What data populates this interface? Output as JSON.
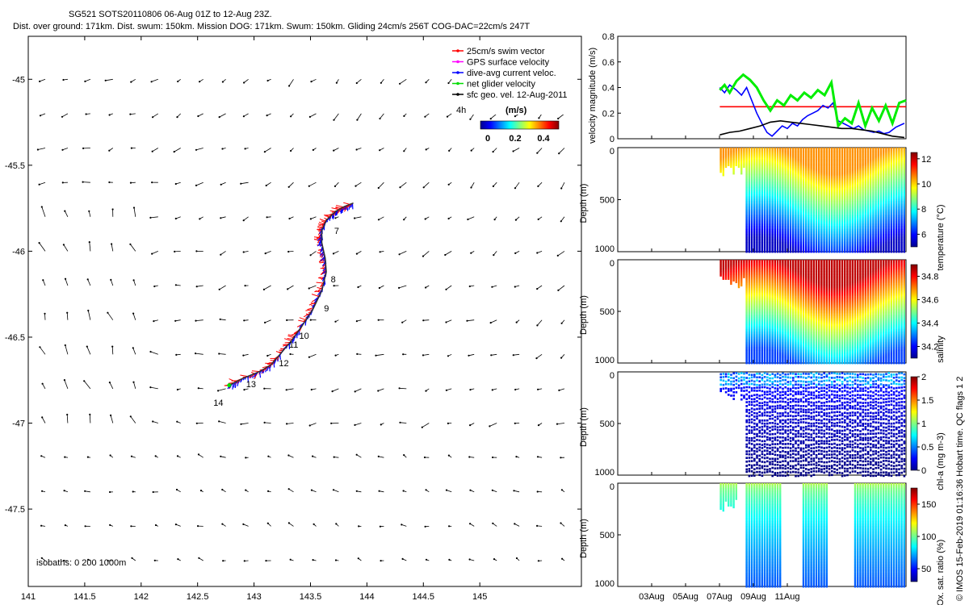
{
  "header": {
    "line1": "SG521 SOTS20110806 06-Aug 01Z to 12-Aug 23Z.",
    "line2": "Dist. over ground: 171km. Dist. swum: 150km. Mission DOG: 171km. Swum: 150km. Gliding 24cm/s 256T COG-DAC=22cm/s 247T"
  },
  "side_label": "© IMOS 15-Feb-2019 01:16:36 Hobart time. QC flags 1  2",
  "chart_data": [
    {
      "type": "scatter",
      "panel": "map",
      "xlim": [
        141,
        145.9
      ],
      "ylim": [
        -47.95,
        -44.75
      ],
      "xticks": [
        141,
        141.5,
        142,
        142.5,
        143,
        143.5,
        144,
        144.5,
        145
      ],
      "xtick_labels": [
        "141",
        "141.5",
        "142",
        "142.5",
        "143",
        "143.5",
        "144",
        "144.5",
        "145"
      ],
      "yticks": [
        -45,
        -45.5,
        -46,
        -46.5,
        -47,
        -47.5
      ],
      "ytick_labels": [
        "-45",
        "-45.5",
        "-46",
        "-46.5",
        "-47",
        "-47.5"
      ],
      "legend": {
        "placement": "top-right",
        "entries": [
          {
            "label": "25cm/s swim vector",
            "color": "#ff0000"
          },
          {
            "label": "GPS surface velocity",
            "color": "#ff00ff"
          },
          {
            "label": "dive-avg current veloc.",
            "color": "#0000ff"
          },
          {
            "label": "net glider velocity",
            "color": "#00dd00"
          },
          {
            "label": "sfc geo. vel. 12-Aug-2011",
            "color": "#000000"
          }
        ],
        "extra": "4h",
        "colorbar_title": "(m/s)",
        "colorbar_ticks": [
          "0",
          "0.2",
          "0.4"
        ]
      },
      "track": {
        "lon": [
          142.78,
          142.9,
          143.05,
          143.15,
          143.23,
          143.32,
          143.42,
          143.52,
          143.6,
          143.64,
          143.63,
          143.6,
          143.6,
          143.64,
          143.72,
          143.8,
          143.88
        ],
        "lat": [
          -46.78,
          -46.74,
          -46.7,
          -46.66,
          -46.6,
          -46.53,
          -46.44,
          -46.34,
          -46.23,
          -46.12,
          -46.04,
          -45.95,
          -45.88,
          -45.82,
          -45.77,
          -45.74,
          -45.72
        ]
      },
      "day_labels": [
        {
          "text": "7",
          "lon": 143.71,
          "lat": -45.9
        },
        {
          "text": "8",
          "lon": 143.68,
          "lat": -46.18
        },
        {
          "text": "9",
          "lon": 143.62,
          "lat": -46.35
        },
        {
          "text": "10",
          "lon": 143.4,
          "lat": -46.51
        },
        {
          "text": "11",
          "lon": 143.31,
          "lat": -46.56
        },
        {
          "text": "12",
          "lon": 143.22,
          "lat": -46.67
        },
        {
          "text": "13",
          "lon": 142.93,
          "lat": -46.79
        },
        {
          "text": "14",
          "lon": 142.64,
          "lat": -46.9
        }
      ],
      "isobaths_label": "isobaths: 0   200  1000m"
    },
    {
      "type": "line",
      "panel": "velocity",
      "ylabel": "velocity magnitude (m/s)",
      "ylim": [
        0,
        0.8
      ],
      "yticks": [
        "0",
        "0.2",
        "0.4",
        "0.6",
        "0.8"
      ],
      "xlim": [
        0,
        17
      ],
      "series": [
        {
          "color": "#ff0000",
          "x": [
            6.02,
            17
          ],
          "y": [
            0.25,
            0.25
          ]
        },
        {
          "color": "#0000ff",
          "x": [
            6.02,
            6.3,
            6.6,
            7.0,
            7.3,
            7.6,
            7.9,
            8.2,
            8.5,
            8.8,
            9.1,
            9.4,
            9.7,
            10.0,
            10.3,
            10.6,
            10.9,
            11.2,
            11.5,
            11.8,
            12.1,
            12.4,
            12.7,
            13.0,
            13.3,
            13.6,
            13.9,
            14.2,
            14.5,
            14.8,
            15.1,
            15.4,
            15.7,
            16.0,
            16.4,
            16.9
          ],
          "y": [
            0.4,
            0.36,
            0.42,
            0.38,
            0.34,
            0.4,
            0.3,
            0.2,
            0.12,
            0.05,
            0.02,
            0.06,
            0.1,
            0.08,
            0.12,
            0.1,
            0.15,
            0.18,
            0.2,
            0.22,
            0.26,
            0.24,
            0.28,
            0.14,
            0.12,
            0.1,
            0.08,
            0.1,
            0.07,
            0.06,
            0.05,
            0.06,
            0.04,
            0.05,
            0.09,
            0.12
          ]
        },
        {
          "color": "#00ee00",
          "x": [
            6.02,
            6.3,
            6.6,
            7.0,
            7.4,
            7.8,
            8.2,
            8.6,
            9.0,
            9.4,
            9.8,
            10.2,
            10.6,
            11.0,
            11.4,
            11.8,
            12.2,
            12.6,
            13.0,
            13.4,
            13.8,
            14.2,
            14.6,
            15.0,
            15.4,
            15.8,
            16.2,
            16.6,
            17.0
          ],
          "y": [
            0.38,
            0.42,
            0.36,
            0.45,
            0.5,
            0.46,
            0.4,
            0.3,
            0.22,
            0.3,
            0.26,
            0.34,
            0.3,
            0.36,
            0.32,
            0.38,
            0.34,
            0.44,
            0.1,
            0.16,
            0.12,
            0.28,
            0.1,
            0.24,
            0.14,
            0.26,
            0.12,
            0.28,
            0.3
          ]
        },
        {
          "color": "#000000",
          "x": [
            6.02,
            6.6,
            7.2,
            7.8,
            8.4,
            9.0,
            9.6,
            10.2,
            10.8,
            11.4,
            12.0,
            12.6,
            13.2,
            13.8,
            14.4,
            15.0,
            15.6,
            16.2,
            16.9
          ],
          "y": [
            0.03,
            0.05,
            0.06,
            0.08,
            0.1,
            0.13,
            0.14,
            0.13,
            0.12,
            0.11,
            0.1,
            0.09,
            0.08,
            0.08,
            0.07,
            0.06,
            0.04,
            0.02,
            0.01
          ]
        }
      ]
    },
    {
      "type": "heatmap",
      "panel": "temperature",
      "ylabel": "Depth (m)",
      "yticks": [
        "0",
        "500",
        "1000"
      ],
      "colorbar_label": "temperature (°C)",
      "colorbar_range": [
        5,
        12.5
      ],
      "colorbar_ticks": [
        "6",
        "8",
        "10",
        "12"
      ],
      "surface_value": 10.5,
      "deep_value": 5.5,
      "x_start": 6.02,
      "x_break": 7.52
    },
    {
      "type": "heatmap",
      "panel": "salinity",
      "ylabel": "Depth (m)",
      "yticks": [
        "0",
        "500",
        "1000"
      ],
      "colorbar_label": "salinity",
      "colorbar_range": [
        34.1,
        34.9
      ],
      "colorbar_ticks": [
        "34.2",
        "34.4",
        "34.6",
        "34.8"
      ],
      "surface_value": 34.85,
      "deep_value": 34.25,
      "x_start": 6.02,
      "x_break": 7.52
    },
    {
      "type": "heatmap",
      "panel": "chlorophyll",
      "ylabel": "Depth (m)",
      "yticks": [
        "0",
        "500",
        "1000"
      ],
      "colorbar_label": "chl-a (mg m-3)",
      "colorbar_range": [
        0,
        2
      ],
      "colorbar_ticks": [
        "0",
        "0.5",
        "1",
        "1.5",
        "2"
      ],
      "surface_value": 0.4,
      "deep_value": 0.0,
      "x_start": 6.02,
      "x_break": 7.52
    },
    {
      "type": "heatmap",
      "panel": "oxygen",
      "ylabel": "Depth (m)",
      "yticks": [
        "0",
        "500",
        "1000"
      ],
      "colorbar_label": "Ox. sat. ratio (%)",
      "colorbar_range": [
        30,
        175
      ],
      "colorbar_ticks": [
        "50",
        "100",
        "150"
      ],
      "surface_value": 110,
      "deep_value": 60,
      "x_start": 6.02,
      "x_break": 7.52
    }
  ],
  "time_axis": {
    "ticks": [
      2,
      4,
      6,
      8,
      10
    ],
    "labels": [
      "03Aug",
      "05Aug",
      "07Aug",
      "09Aug",
      "11Aug"
    ]
  }
}
